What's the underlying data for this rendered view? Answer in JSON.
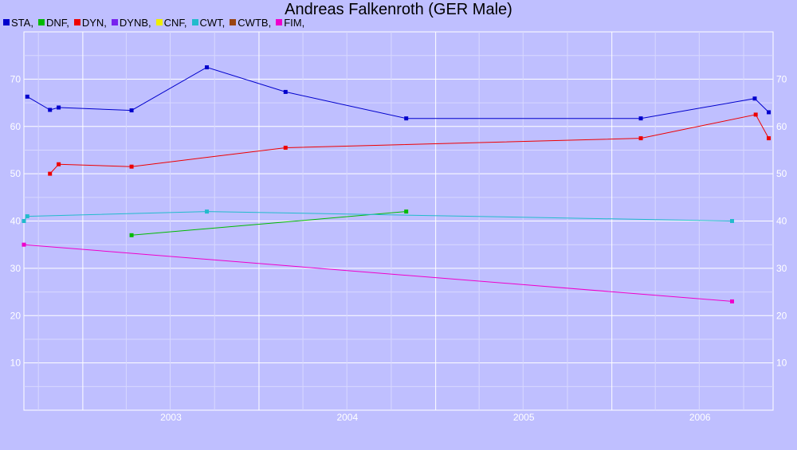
{
  "chart_data": {
    "type": "line",
    "title": "Andreas Falkenroth (GER Male)",
    "xlabel": "",
    "ylabel": "",
    "x_axis": "date",
    "xlim": [
      "2002-09-01",
      "2006-12-01"
    ],
    "ylim": [
      0,
      80
    ],
    "y_ticks": [
      10,
      20,
      30,
      40,
      50,
      60,
      70
    ],
    "x_tick_labels": [
      "2003",
      "2004",
      "2005",
      "2006"
    ],
    "grid": true,
    "legend_position": "top-left",
    "legend": [
      {
        "label": "STA,",
        "color": "#0000cc"
      },
      {
        "label": "DNF,",
        "color": "#00bb00"
      },
      {
        "label": "DYN,",
        "color": "#ee0000"
      },
      {
        "label": "DYNB,",
        "color": "#7722ee"
      },
      {
        "label": "CNF,",
        "color": "#eeee00"
      },
      {
        "label": "CWT,",
        "color": "#22bbcc"
      },
      {
        "label": "CWTB,",
        "color": "#994411"
      },
      {
        "label": "FIM,",
        "color": "#ee00cc"
      }
    ],
    "series": [
      {
        "name": "STA",
        "color": "#0000cc",
        "points": [
          [
            "2002-09-08",
            66.3
          ],
          [
            "2002-10-25",
            63.5
          ],
          [
            "2002-11-12",
            64.0
          ],
          [
            "2003-04-12",
            63.4
          ],
          [
            "2003-09-15",
            72.5
          ],
          [
            "2004-02-25",
            67.3
          ],
          [
            "2004-11-01",
            61.7
          ],
          [
            "2006-03-02",
            61.7
          ],
          [
            "2006-10-24",
            65.9
          ],
          [
            "2006-11-22",
            63.0
          ]
        ]
      },
      {
        "name": "DNF",
        "color": "#00bb00",
        "points": [
          [
            "2003-04-12",
            37.0
          ],
          [
            "2004-11-01",
            42.0
          ]
        ]
      },
      {
        "name": "DYN",
        "color": "#ee0000",
        "points": [
          [
            "2002-10-25",
            50.0
          ],
          [
            "2002-11-12",
            52.0
          ],
          [
            "2003-04-12",
            51.5
          ],
          [
            "2004-02-25",
            55.5
          ],
          [
            "2006-03-02",
            57.5
          ],
          [
            "2006-10-26",
            62.5
          ],
          [
            "2006-11-22",
            57.5
          ]
        ]
      },
      {
        "name": "CWT",
        "color": "#22bbcc",
        "points": [
          [
            "2002-09-01",
            40.0
          ],
          [
            "2002-09-08",
            41.0
          ],
          [
            "2003-09-15",
            42.0
          ],
          [
            "2006-09-07",
            40.0
          ]
        ]
      },
      {
        "name": "FIM",
        "color": "#ee00cc",
        "points": [
          [
            "2002-09-01",
            35.0
          ],
          [
            "2006-09-07",
            23.0
          ]
        ]
      }
    ]
  }
}
